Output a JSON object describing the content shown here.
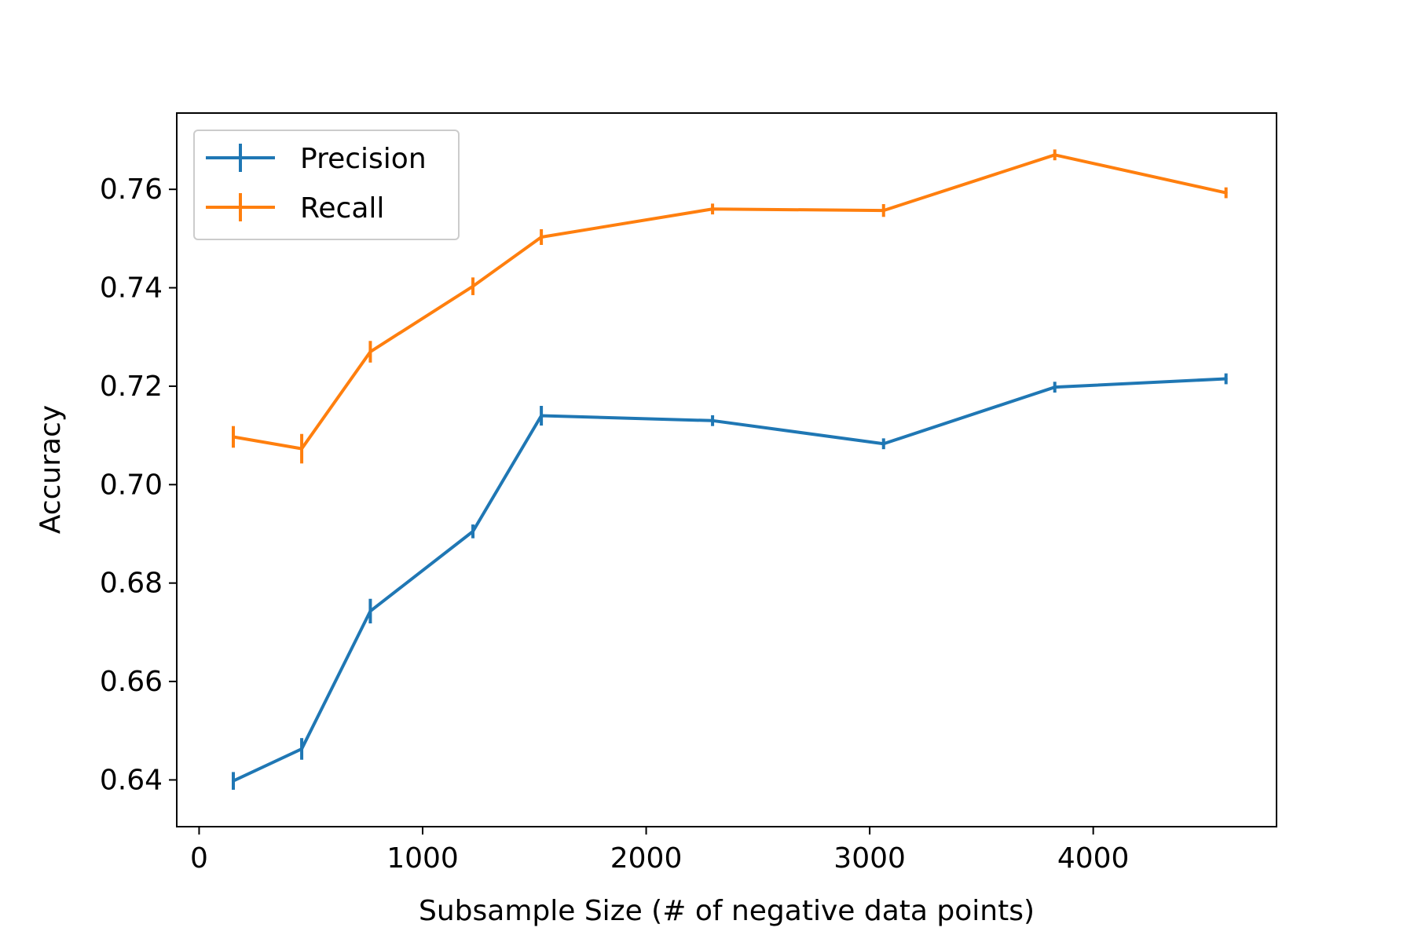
{
  "chart_data": {
    "type": "line",
    "title": "",
    "xlabel": "Subsample Size (# of negative data points)",
    "ylabel": "Accuracy",
    "xlim": [
      -100,
      4820
    ],
    "ylim": [
      0.6305,
      0.7755
    ],
    "x_ticks": [
      0,
      1000,
      2000,
      3000,
      4000
    ],
    "x_tick_labels": [
      "0",
      "1000",
      "2000",
      "3000",
      "4000"
    ],
    "y_ticks": [
      0.64,
      0.66,
      0.68,
      0.7,
      0.72,
      0.74,
      0.76
    ],
    "y_tick_labels": [
      "0.64",
      "0.66",
      "0.68",
      "0.70",
      "0.72",
      "0.74",
      "0.76"
    ],
    "grid": false,
    "legend": {
      "placement": "top-left"
    },
    "x": [
      153,
      459,
      766,
      1225,
      1531,
      2297,
      3062,
      3828,
      4594
    ],
    "series": [
      {
        "name": "Precision",
        "color": "#1f77b4",
        "values": [
          0.6398,
          0.6463,
          0.6743,
          0.6905,
          0.714,
          0.713,
          0.7083,
          0.7198,
          0.7215
        ],
        "errors": [
          0.0018,
          0.0022,
          0.0025,
          0.0014,
          0.002,
          0.0011,
          0.0011,
          0.0011,
          0.0011
        ]
      },
      {
        "name": "Recall",
        "color": "#ff7f0e",
        "values": [
          0.7097,
          0.7073,
          0.727,
          0.7403,
          0.7503,
          0.756,
          0.7557,
          0.767,
          0.7593
        ],
        "errors": [
          0.0022,
          0.003,
          0.0022,
          0.0018,
          0.0016,
          0.0011,
          0.0013,
          0.0011,
          0.0011
        ]
      }
    ]
  }
}
